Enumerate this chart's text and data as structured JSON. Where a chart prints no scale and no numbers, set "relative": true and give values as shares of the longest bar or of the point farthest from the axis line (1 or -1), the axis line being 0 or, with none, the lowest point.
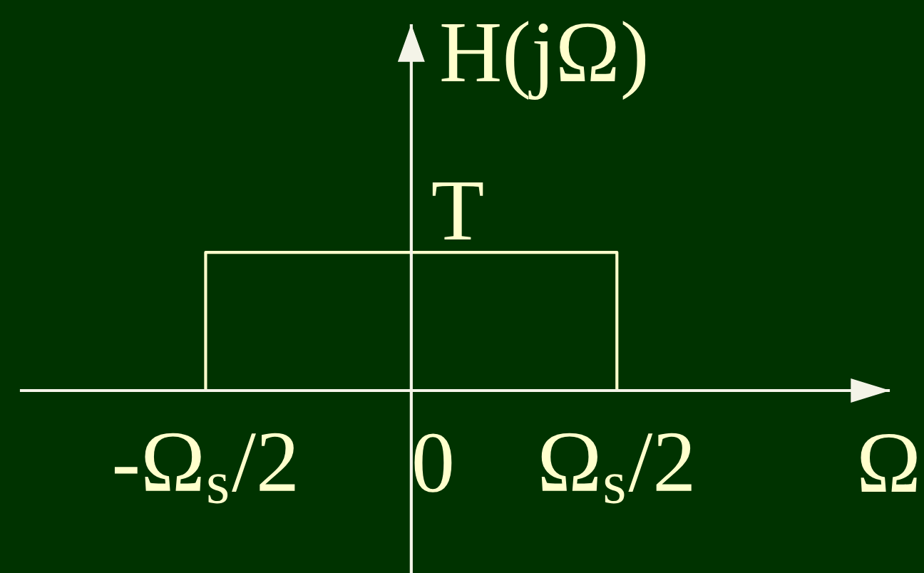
{
  "chart_data": {
    "type": "line",
    "xlabel": "Ω",
    "ylabel": "H(jΩ)",
    "categories": [
      "-Ω$_{s}$/2",
      "0",
      "Ω$_{s}$/2"
    ],
    "series": [
      {
        "color": "#ffffcc",
        "x": [
          "-Ω$_{s}$/2",
          "-Ω$_{s}$/2",
          "0",
          "Ω$_{s}$/2",
          "Ω$_{s}$/2"
        ],
        "values": [
          0,
          1,
          1,
          1,
          0
        ]
      }
    ],
    "relative": true,
    "annotations": [
      {
        "text": "T",
        "x": "0",
        "y": 1
      }
    ]
  }
}
